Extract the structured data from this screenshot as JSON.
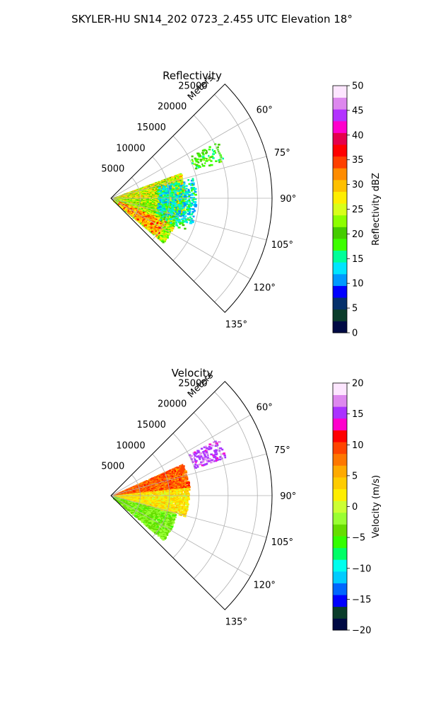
{
  "suptitle": "SKYLER-HU  SN14_202  0723_2.455 UTC Elevation 18°",
  "chart_data": [
    {
      "type": "heatmap",
      "title": "Reflectivity",
      "projection": "polar sector",
      "radial_label": "Meters",
      "r_ticks": [
        5000,
        10000,
        15000,
        20000,
        25000
      ],
      "r_tick_labels": [
        "5000",
        "10000",
        "15000",
        "20000",
        "25000"
      ],
      "r_max": 27500,
      "theta_range_deg": [
        45,
        135
      ],
      "theta_ticks": [
        60,
        75,
        90,
        105,
        120,
        135
      ],
      "theta_tick_labels": [
        "60°",
        "75°",
        "90°",
        "105°",
        "120°",
        "135°"
      ],
      "grid": true,
      "colorbar": {
        "label": "Reflectivity dBZ",
        "range": [
          0,
          50
        ],
        "ticks": [
          0,
          5,
          10,
          15,
          20,
          25,
          30,
          35,
          40,
          45,
          50
        ],
        "tick_labels": [
          "0",
          "5",
          "10",
          "15",
          "20",
          "25",
          "30",
          "35",
          "40",
          "45",
          "50"
        ],
        "colormap": [
          "#000a44",
          "#0b3d2b",
          "#05306b",
          "#0000ff",
          "#0099ff",
          "#00e5ff",
          "#00ff99",
          "#3cff00",
          "#44cc00",
          "#8cff00",
          "#d8ff1a",
          "#ffee00",
          "#ffc000",
          "#ff8c00",
          "#ff4000",
          "#ff0000",
          "#e5004c",
          "#ff00cc",
          "#b233ff",
          "#dd88ee",
          "#fde6ff"
        ]
      },
      "echo_regions": [
        {
          "theta": [
            70,
            102
          ],
          "r": [
            500,
            12500
          ],
          "value_range": [
            20,
            32
          ],
          "density": 0.92
        },
        {
          "theta": [
            90,
            131
          ],
          "r": [
            500,
            11500
          ],
          "value_range": [
            17,
            30
          ],
          "density": 0.9
        },
        {
          "theta": [
            113,
            130
          ],
          "r": [
            1500,
            10000
          ],
          "value_range": [
            26,
            37
          ],
          "density": 0.6
        },
        {
          "theta": [
            76,
            108
          ],
          "r": [
            8000,
            14500
          ],
          "value_range": [
            10,
            18
          ],
          "density": 0.45
        },
        {
          "theta": [
            62,
            72
          ],
          "r": [
            15000,
            20500
          ],
          "value_range": [
            16,
            22
          ],
          "density": 0.35
        },
        {
          "theta": [
            104,
            114
          ],
          "r": [
            9000,
            13500
          ],
          "value_range": [
            12,
            20
          ],
          "density": 0.3
        }
      ]
    },
    {
      "type": "heatmap",
      "title": "Velocity",
      "projection": "polar sector",
      "radial_label": "Meters",
      "r_ticks": [
        5000,
        10000,
        15000,
        20000,
        25000
      ],
      "r_tick_labels": [
        "5000",
        "10000",
        "15000",
        "20000",
        "25000"
      ],
      "r_max": 27500,
      "theta_range_deg": [
        45,
        135
      ],
      "theta_ticks": [
        60,
        75,
        90,
        105,
        120,
        135
      ],
      "theta_tick_labels": [
        "60°",
        "75°",
        "90°",
        "105°",
        "120°",
        "135°"
      ],
      "grid": true,
      "colorbar": {
        "label": "Velocity (m/s)",
        "range": [
          -20,
          20
        ],
        "ticks": [
          -20,
          -15,
          -10,
          -5,
          0,
          5,
          10,
          15,
          20
        ],
        "tick_labels": [
          "−20",
          "−15",
          "−10",
          "−5",
          "0",
          "5",
          "10",
          "15",
          "20"
        ],
        "colormap": [
          "#000a44",
          "#0b3d2b",
          "#0000ff",
          "#0066ff",
          "#00ccff",
          "#00ffee",
          "#00ff66",
          "#33ff00",
          "#66dd00",
          "#99ff33",
          "#ccff33",
          "#ffee00",
          "#ffcc00",
          "#ffaa00",
          "#ff7700",
          "#ff4400",
          "#ff0000",
          "#ff00cc",
          "#aa33ff",
          "#dd88ee",
          "#fde6ff"
        ]
      },
      "echo_regions": [
        {
          "theta": [
            66,
            86
          ],
          "r": [
            500,
            13500
          ],
          "value_range": [
            6,
            11
          ],
          "density": 0.92
        },
        {
          "theta": [
            84,
            106
          ],
          "r": [
            500,
            13000
          ],
          "value_range": [
            0,
            5
          ],
          "density": 0.9
        },
        {
          "theta": [
            106,
            131
          ],
          "r": [
            500,
            11500
          ],
          "value_range": [
            -5,
            -1
          ],
          "density": 0.85
        },
        {
          "theta": [
            62,
            72
          ],
          "r": [
            15000,
            20500
          ],
          "value_range": [
            14,
            17
          ],
          "density": 0.4
        }
      ]
    }
  ]
}
